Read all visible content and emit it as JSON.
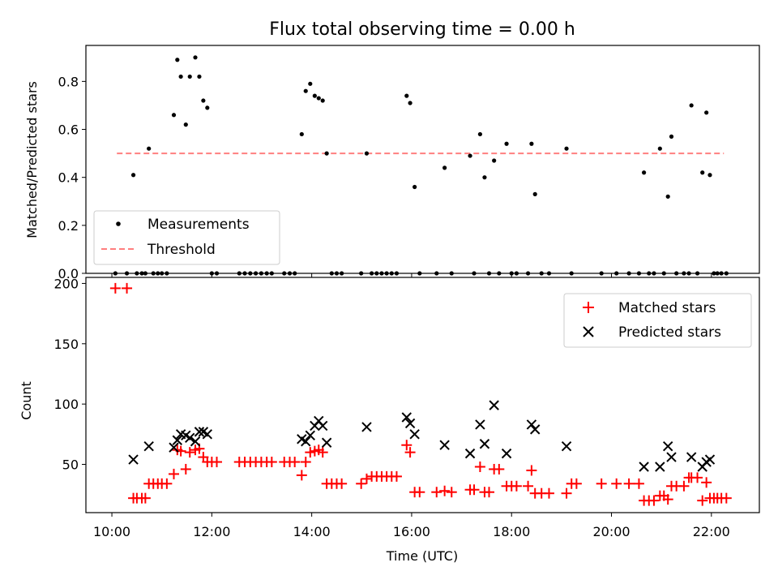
{
  "chart_data": [
    {
      "type": "scatter",
      "title": "Flux total observing time = 0.00 h",
      "xlabel": "",
      "ylabel": "Matched/Predicted stars",
      "xlim": [
        9.48,
        22.96
      ],
      "ylim": [
        0,
        0.95
      ],
      "yticks": [
        0.0,
        0.2,
        0.4,
        0.6,
        0.8
      ],
      "ytick_labels": [
        "0.0",
        "0.2",
        "0.4",
        "0.6",
        "0.8"
      ],
      "xticks": [
        10,
        12,
        14,
        16,
        18,
        20,
        22
      ],
      "legend": {
        "position": "lower-left",
        "entries": [
          {
            "label": "Measurements",
            "marker": "dot",
            "color": "#000000"
          },
          {
            "label": "Threshold",
            "marker": "dashed-line",
            "color": "#ff7f7f"
          }
        ]
      },
      "threshold": {
        "value": 0.5,
        "x_from": 10.1,
        "x_to": 22.25,
        "color": "#ff7f7f"
      },
      "series": [
        {
          "name": "Measurements",
          "color": "#000000",
          "points": [
            [
              10.07,
              0
            ],
            [
              10.3,
              0
            ],
            [
              10.43,
              0.41
            ],
            [
              10.5,
              0
            ],
            [
              10.6,
              0
            ],
            [
              10.67,
              0
            ],
            [
              10.74,
              0.52
            ],
            [
              10.83,
              0
            ],
            [
              10.92,
              0
            ],
            [
              11.0,
              0
            ],
            [
              11.1,
              0
            ],
            [
              11.24,
              0.66
            ],
            [
              11.31,
              0.89
            ],
            [
              11.38,
              0.82
            ],
            [
              11.48,
              0.62
            ],
            [
              11.56,
              0.82
            ],
            [
              11.67,
              0.9
            ],
            [
              11.75,
              0.82
            ],
            [
              11.83,
              0.72
            ],
            [
              11.91,
              0.69
            ],
            [
              12.0,
              0
            ],
            [
              12.1,
              0
            ],
            [
              12.55,
              0
            ],
            [
              12.66,
              0
            ],
            [
              12.77,
              0
            ],
            [
              12.88,
              0
            ],
            [
              12.99,
              0
            ],
            [
              13.1,
              0
            ],
            [
              13.2,
              0
            ],
            [
              13.45,
              0
            ],
            [
              13.56,
              0
            ],
            [
              13.66,
              0
            ],
            [
              13.8,
              0.58
            ],
            [
              13.88,
              0.76
            ],
            [
              13.97,
              0.79
            ],
            [
              14.06,
              0.74
            ],
            [
              14.14,
              0.73
            ],
            [
              14.22,
              0.72
            ],
            [
              14.3,
              0.5
            ],
            [
              14.4,
              0
            ],
            [
              14.5,
              0
            ],
            [
              14.6,
              0
            ],
            [
              14.99,
              0
            ],
            [
              15.1,
              0.5
            ],
            [
              15.2,
              0
            ],
            [
              15.3,
              0
            ],
            [
              15.4,
              0
            ],
            [
              15.5,
              0
            ],
            [
              15.6,
              0
            ],
            [
              15.7,
              0
            ],
            [
              15.9,
              0.74
            ],
            [
              15.97,
              0.71
            ],
            [
              16.06,
              0.36
            ],
            [
              16.16,
              0
            ],
            [
              16.5,
              0
            ],
            [
              16.66,
              0.44
            ],
            [
              16.8,
              0
            ],
            [
              17.17,
              0.49
            ],
            [
              17.25,
              0
            ],
            [
              17.37,
              0.58
            ],
            [
              17.46,
              0.4
            ],
            [
              17.55,
              0
            ],
            [
              17.65,
              0.47
            ],
            [
              17.75,
              0
            ],
            [
              17.9,
              0.54
            ],
            [
              18.0,
              0
            ],
            [
              18.1,
              0
            ],
            [
              18.33,
              0
            ],
            [
              18.4,
              0.54
            ],
            [
              18.47,
              0.33
            ],
            [
              18.6,
              0
            ],
            [
              18.75,
              0
            ],
            [
              19.1,
              0.52
            ],
            [
              19.2,
              0
            ],
            [
              19.8,
              0
            ],
            [
              20.1,
              0
            ],
            [
              20.35,
              0
            ],
            [
              20.55,
              0
            ],
            [
              20.65,
              0.42
            ],
            [
              20.75,
              0
            ],
            [
              20.85,
              0
            ],
            [
              20.97,
              0.52
            ],
            [
              21.05,
              0
            ],
            [
              21.13,
              0.32
            ],
            [
              21.2,
              0.57
            ],
            [
              21.3,
              0
            ],
            [
              21.45,
              0
            ],
            [
              21.55,
              0
            ],
            [
              21.6,
              0.7
            ],
            [
              21.72,
              0
            ],
            [
              21.82,
              0.42
            ],
            [
              21.9,
              0.67
            ],
            [
              21.97,
              0.41
            ],
            [
              22.05,
              0
            ],
            [
              22.12,
              0
            ],
            [
              22.2,
              0
            ],
            [
              22.3,
              0
            ]
          ]
        }
      ]
    },
    {
      "type": "scatter",
      "title": "",
      "xlabel": "Time (UTC)",
      "ylabel": "Count",
      "xlim": [
        9.48,
        22.96
      ],
      "ylim": [
        10,
        205
      ],
      "yticks": [
        50,
        100,
        150,
        200
      ],
      "ytick_labels": [
        "50",
        "100",
        "150",
        "200"
      ],
      "xticks": [
        10,
        12,
        14,
        16,
        18,
        20,
        22
      ],
      "xtick_labels": [
        "10:00",
        "12:00",
        "14:00",
        "16:00",
        "18:00",
        "20:00",
        "22:00"
      ],
      "legend": {
        "position": "upper-right",
        "entries": [
          {
            "label": "Matched stars",
            "marker": "plus",
            "color": "#ff0000"
          },
          {
            "label": "Predicted stars",
            "marker": "x",
            "color": "#000000"
          }
        ]
      },
      "series": [
        {
          "name": "Matched stars",
          "color": "#ff0000",
          "marker": "plus",
          "points": [
            [
              10.07,
              196
            ],
            [
              10.3,
              196
            ],
            [
              10.43,
              22
            ],
            [
              10.5,
              22
            ],
            [
              10.6,
              22
            ],
            [
              10.67,
              22
            ],
            [
              10.74,
              34
            ],
            [
              10.83,
              34
            ],
            [
              10.92,
              34
            ],
            [
              11.0,
              34
            ],
            [
              11.1,
              34
            ],
            [
              11.24,
              42
            ],
            [
              11.31,
              62
            ],
            [
              11.38,
              61
            ],
            [
              11.48,
              46
            ],
            [
              11.56,
              60
            ],
            [
              11.67,
              62
            ],
            [
              11.75,
              63
            ],
            [
              11.83,
              56
            ],
            [
              11.91,
              52
            ],
            [
              12.0,
              52
            ],
            [
              12.1,
              52
            ],
            [
              12.55,
              52
            ],
            [
              12.66,
              52
            ],
            [
              12.77,
              52
            ],
            [
              12.88,
              52
            ],
            [
              12.99,
              52
            ],
            [
              13.1,
              52
            ],
            [
              13.2,
              52
            ],
            [
              13.45,
              52
            ],
            [
              13.56,
              52
            ],
            [
              13.66,
              52
            ],
            [
              13.8,
              41
            ],
            [
              13.88,
              52
            ],
            [
              13.97,
              60
            ],
            [
              14.06,
              61
            ],
            [
              14.14,
              62
            ],
            [
              14.22,
              60
            ],
            [
              14.3,
              34
            ],
            [
              14.4,
              34
            ],
            [
              14.5,
              34
            ],
            [
              14.6,
              34
            ],
            [
              14.99,
              34
            ],
            [
              15.1,
              38
            ],
            [
              15.2,
              40
            ],
            [
              15.3,
              40
            ],
            [
              15.4,
              40
            ],
            [
              15.5,
              40
            ],
            [
              15.6,
              40
            ],
            [
              15.7,
              40
            ],
            [
              15.9,
              66
            ],
            [
              15.97,
              60
            ],
            [
              16.06,
              27
            ],
            [
              16.16,
              27
            ],
            [
              16.5,
              27
            ],
            [
              16.66,
              28
            ],
            [
              16.8,
              27
            ],
            [
              17.17,
              29
            ],
            [
              17.25,
              29
            ],
            [
              17.37,
              48
            ],
            [
              17.46,
              27
            ],
            [
              17.55,
              27
            ],
            [
              17.65,
              46
            ],
            [
              17.75,
              46
            ],
            [
              17.9,
              32
            ],
            [
              18.0,
              32
            ],
            [
              18.1,
              32
            ],
            [
              18.33,
              32
            ],
            [
              18.4,
              45
            ],
            [
              18.47,
              26
            ],
            [
              18.6,
              26
            ],
            [
              18.75,
              26
            ],
            [
              19.1,
              26
            ],
            [
              19.2,
              34
            ],
            [
              19.3,
              34
            ],
            [
              19.8,
              34
            ],
            [
              20.1,
              34
            ],
            [
              20.35,
              34
            ],
            [
              20.55,
              34
            ],
            [
              20.65,
              20
            ],
            [
              20.75,
              20
            ],
            [
              20.85,
              20
            ],
            [
              20.97,
              24
            ],
            [
              21.05,
              24
            ],
            [
              21.13,
              21
            ],
            [
              21.2,
              32
            ],
            [
              21.3,
              32
            ],
            [
              21.45,
              32
            ],
            [
              21.55,
              39
            ],
            [
              21.6,
              39
            ],
            [
              21.72,
              39
            ],
            [
              21.82,
              20
            ],
            [
              21.9,
              35
            ],
            [
              21.97,
              22
            ],
            [
              22.05,
              22
            ],
            [
              22.12,
              22
            ],
            [
              22.2,
              22
            ],
            [
              22.3,
              22
            ]
          ]
        },
        {
          "name": "Predicted stars",
          "color": "#000000",
          "marker": "x",
          "points": [
            [
              10.43,
              54
            ],
            [
              10.74,
              65
            ],
            [
              11.24,
              64
            ],
            [
              11.31,
              70
            ],
            [
              11.38,
              75
            ],
            [
              11.48,
              74
            ],
            [
              11.56,
              72
            ],
            [
              11.67,
              69
            ],
            [
              11.75,
              77
            ],
            [
              11.83,
              77
            ],
            [
              11.91,
              75
            ],
            [
              13.8,
              71
            ],
            [
              13.88,
              69
            ],
            [
              13.97,
              74
            ],
            [
              14.06,
              82
            ],
            [
              14.14,
              86
            ],
            [
              14.22,
              82
            ],
            [
              14.3,
              68
            ],
            [
              15.1,
              81
            ],
            [
              15.9,
              89
            ],
            [
              15.97,
              84
            ],
            [
              16.06,
              75
            ],
            [
              16.66,
              66
            ],
            [
              17.17,
              59
            ],
            [
              17.37,
              83
            ],
            [
              17.46,
              67
            ],
            [
              17.65,
              99
            ],
            [
              17.9,
              59
            ],
            [
              18.4,
              83
            ],
            [
              18.47,
              79
            ],
            [
              19.1,
              65
            ],
            [
              20.65,
              48
            ],
            [
              20.97,
              48
            ],
            [
              21.13,
              65
            ],
            [
              21.2,
              56
            ],
            [
              21.6,
              56
            ],
            [
              21.82,
              48
            ],
            [
              21.9,
              52
            ],
            [
              21.97,
              54
            ]
          ]
        }
      ]
    }
  ]
}
